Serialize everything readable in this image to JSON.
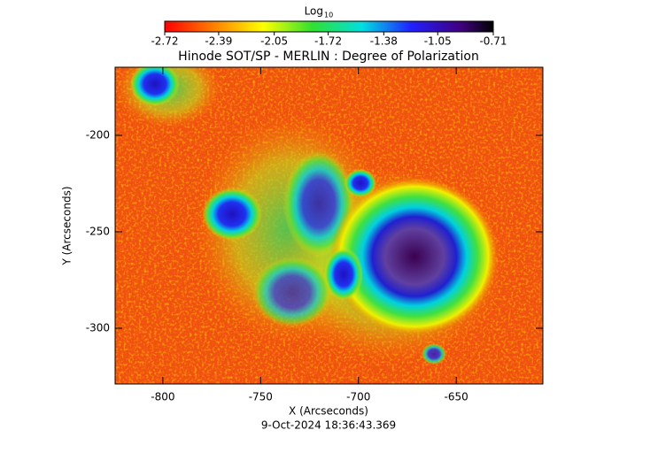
{
  "chart_data": {
    "type": "heatmap",
    "title": "Hinode SOT/SP - MERLIN : Degree of Polarization",
    "colorbar_title": "Log",
    "colorbar_title_subscript": "10",
    "clim": [
      -2.72,
      -0.71
    ],
    "cticks": [
      -2.72,
      -2.39,
      -2.05,
      -1.72,
      -1.38,
      -1.05,
      -0.71
    ],
    "xlabel": "X (Arcseconds)",
    "ylabel": "Y (Arcseconds)",
    "xlim": [
      -824.4,
      -605.7
    ],
    "xticks": [
      -800,
      -750,
      -700,
      -650
    ],
    "ylim": [
      -328.9,
      -164.7
    ],
    "yticks": [
      -300,
      -250,
      -200
    ],
    "footer": "9-Oct-2024 18:36:43.369"
  }
}
